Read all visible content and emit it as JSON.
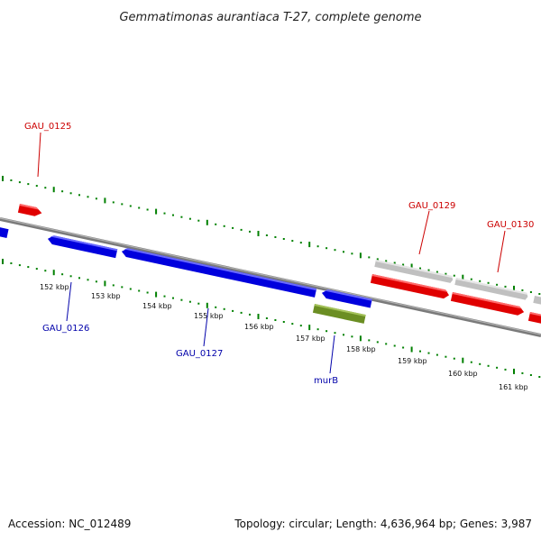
{
  "title": "Gemmatimonas aurantiaca T-27, complete genome",
  "accession": "Accession: NC_012489",
  "summary": "Topology: circular; Length: 4,636,964 bp; Genes: 3,987",
  "colors": {
    "forward_gene": "#e00000",
    "reverse_gene": "#0000dd",
    "named_gene": "#6b8e23",
    "pseudo_gene": "#c0c0c0",
    "backbone": "#888888",
    "tick": "#008000",
    "label_forward": "#cc0000",
    "label_reverse": "#0000aa"
  },
  "kbp_labels": [
    "152 kbp",
    "153 kbp",
    "154 kbp",
    "155 kbp",
    "156 kbp",
    "157 kbp",
    "158 kbp",
    "159 kbp",
    "160 kbp",
    "161 kbp"
  ],
  "gene_labels": [
    {
      "id": "lbl-gau-0125",
      "text": "GAU_0125",
      "strand": "forward"
    },
    {
      "id": "lbl-gau-0126",
      "text": "GAU_0126",
      "strand": "reverse"
    },
    {
      "id": "lbl-gau-0127",
      "text": "GAU_0127",
      "strand": "reverse"
    },
    {
      "id": "lbl-murb",
      "text": "murB",
      "strand": "reverse"
    },
    {
      "id": "lbl-gau-0129",
      "text": "GAU_0129",
      "strand": "forward"
    },
    {
      "id": "lbl-gau-0130",
      "text": "GAU_0130",
      "strand": "forward"
    }
  ]
}
